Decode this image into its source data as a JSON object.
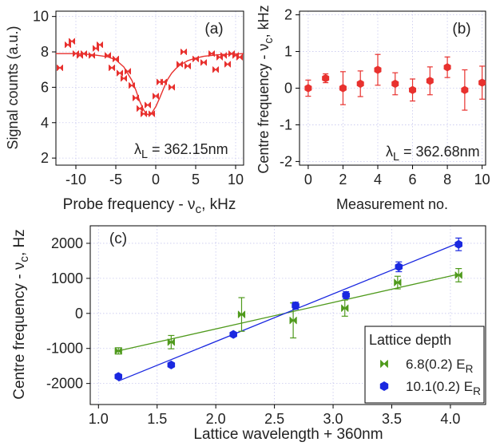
{
  "chart_data": [
    {
      "type": "scatter",
      "panel_label": "(a)",
      "xlabel": "Probe frequency - ν",
      "xlabel_sub": "c",
      "xlabel_unit": ", kHz",
      "ylabel": "Signal counts (a.u.)",
      "xlim": [
        -12.5,
        11
      ],
      "ylim": [
        1.6,
        10.3
      ],
      "xticks": [
        -10,
        -5,
        0,
        5,
        10
      ],
      "yticks": [
        2,
        4,
        6,
        8,
        10
      ],
      "grid": true,
      "color": "#e8312e",
      "marker": "x",
      "annotation": {
        "prefix": "λ",
        "sub": "L",
        "text": " = 362.15nm"
      },
      "series": [
        {
          "x": [
            -12,
            -11,
            -10.5,
            -10,
            -9.5,
            -9,
            -8,
            -7.5,
            -7,
            -6,
            -5.5,
            -5,
            -4.5,
            -4,
            -3.5,
            -3,
            -2.5,
            -2,
            -1.5,
            -1,
            -0.5,
            0,
            0.5,
            1,
            2,
            3,
            3.5,
            4,
            5,
            6,
            7,
            7.5,
            8,
            8.5,
            9,
            9.5,
            10,
            10.5
          ],
          "y": [
            7.1,
            8.4,
            8.6,
            7.9,
            7.8,
            7.9,
            7.8,
            8.2,
            8.4,
            7.8,
            7.1,
            7.6,
            6.8,
            6.5,
            6.9,
            6.1,
            5.4,
            4.8,
            4.5,
            5.0,
            4.5,
            5.5,
            6.3,
            6.3,
            6.0,
            7.3,
            8.0,
            7.2,
            7.6,
            7.4,
            7.9,
            7.0,
            7.7,
            7.8,
            7.3,
            7.9,
            7.8,
            7.7
          ]
        }
      ],
      "fit": {
        "x": [
          -12.5,
          -10,
          -8,
          -6,
          -5,
          -4,
          -3,
          -2.5,
          -2,
          -1.5,
          -1,
          -0.5,
          0,
          0.5,
          1,
          1.5,
          2,
          2.5,
          3,
          4,
          5,
          6,
          8,
          10,
          11
        ],
        "y": [
          7.9,
          7.9,
          7.85,
          7.72,
          7.55,
          7.15,
          6.4,
          5.85,
          5.2,
          4.7,
          4.45,
          4.55,
          4.9,
          5.4,
          5.95,
          6.45,
          6.8,
          7.05,
          7.25,
          7.5,
          7.65,
          7.75,
          7.85,
          7.88,
          7.9
        ]
      }
    },
    {
      "type": "scatter",
      "panel_label": "(b)",
      "xlabel": "Measurement no.",
      "ylabel": "Centre frequency - ν",
      "ylabel_sub": "c",
      "ylabel_unit": ", kHz",
      "xlim": [
        -0.5,
        10.2
      ],
      "ylim": [
        -2.1,
        2.1
      ],
      "xticks": [
        0,
        2,
        4,
        6,
        8,
        10
      ],
      "yticks": [
        -2,
        -1,
        0,
        1,
        2
      ],
      "grid": true,
      "color": "#e8312e",
      "marker": "hexagon",
      "annotation": {
        "prefix": "λ",
        "sub": "L",
        "text": " = 362.68nm"
      },
      "series": [
        {
          "x": [
            0,
            1,
            2,
            3,
            4,
            5,
            6,
            7,
            8,
            9,
            10
          ],
          "y": [
            0.0,
            0.27,
            0.0,
            0.12,
            0.5,
            0.12,
            -0.05,
            0.2,
            0.57,
            -0.05,
            0.15
          ],
          "err": [
            0.22,
            0.12,
            0.45,
            0.35,
            0.42,
            0.3,
            0.3,
            0.38,
            0.28,
            0.55,
            0.45
          ]
        }
      ]
    },
    {
      "type": "scatter",
      "panel_label": "(c)",
      "xlabel": "Lattice wavelength + 360nm",
      "ylabel": "Centre frequency - ν",
      "ylabel_sub": "c",
      "ylabel_unit": ", Hz",
      "xlim": [
        0.93,
        4.3
      ],
      "ylim": [
        -2600,
        2500
      ],
      "xticks": [
        1.0,
        1.5,
        2.0,
        2.5,
        3.0,
        3.5,
        4.0
      ],
      "yticks": [
        -2000,
        -1000,
        0,
        1000,
        2000
      ],
      "grid": true,
      "legend": {
        "title": "Lattice depth",
        "placement": "bottom-right",
        "entries": [
          {
            "label": "6.8(0.2) E",
            "sub": "R"
          },
          {
            "label": "10.1(0.2) E",
            "sub": "R"
          }
        ]
      },
      "series": [
        {
          "color": "#4f9a1c",
          "marker": "x",
          "x": [
            1.17,
            1.62,
            2.22,
            2.66,
            3.1,
            3.55,
            4.07
          ],
          "y": [
            -1070,
            -820,
            -30,
            -200,
            150,
            880,
            1090
          ],
          "err": [
            90,
            190,
            480,
            500,
            230,
            180,
            190
          ],
          "fit": {
            "x": [
              1.17,
              4.07
            ],
            "y": [
              -1070,
              1120
            ]
          }
        },
        {
          "color": "#1a28e0",
          "marker": "hexagon",
          "x": [
            1.17,
            1.62,
            2.15,
            2.68,
            3.11,
            3.56,
            4.07
          ],
          "y": [
            -1800,
            -1470,
            -600,
            220,
            520,
            1330,
            1970
          ],
          "err": [
            50,
            50,
            50,
            100,
            100,
            140,
            180
          ],
          "fit": {
            "x": [
              1.17,
              4.07
            ],
            "y": [
              -1930,
              2010
            ]
          }
        }
      ]
    }
  ]
}
